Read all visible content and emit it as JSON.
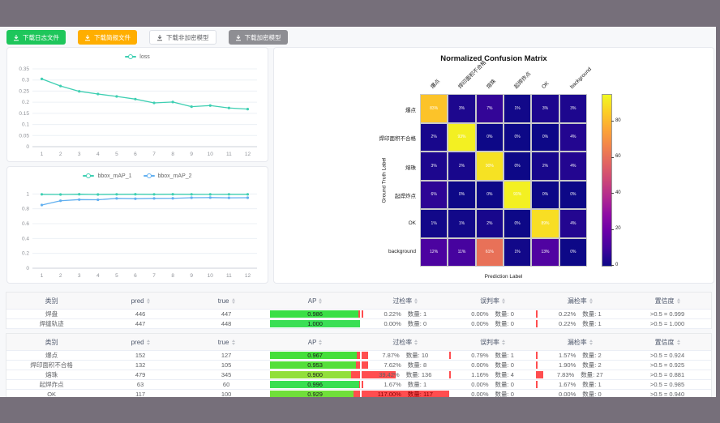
{
  "toolbar": {
    "buttons": [
      {
        "label": "下载日志文件",
        "bg": "#1ec65b",
        "color": "#ffffff",
        "border": ""
      },
      {
        "label": "下载简报文件",
        "bg": "#ffae00",
        "color": "#ffffff",
        "border": ""
      },
      {
        "label": "下载非加密模型",
        "bg": "#ffffff",
        "color": "#606266",
        "border": "#dcdfe6"
      },
      {
        "label": "下载加密模型",
        "bg": "#8e8e93",
        "color": "#ffffff",
        "border": ""
      }
    ]
  },
  "chart_data": [
    {
      "type": "line",
      "title": "",
      "x": [
        1,
        2,
        3,
        4,
        5,
        6,
        7,
        8,
        9,
        10,
        11,
        12
      ],
      "series": [
        {
          "name": "loss",
          "color": "#3ecfb2",
          "values": [
            0.305,
            0.273,
            0.249,
            0.237,
            0.226,
            0.214,
            0.197,
            0.201,
            0.18,
            0.185,
            0.174,
            0.169
          ]
        }
      ],
      "ylim": [
        0,
        0.35
      ],
      "yticks": [
        0,
        0.05,
        0.1,
        0.15,
        0.2,
        0.25,
        0.3,
        0.35
      ],
      "ylabels": [
        "0",
        "0.05",
        "0.1",
        "0.15",
        "0.2",
        "0.25",
        "0.3",
        "0.35"
      ],
      "grid": true,
      "legend_position": "top"
    },
    {
      "type": "line",
      "title": "",
      "x": [
        1,
        2,
        3,
        4,
        5,
        6,
        7,
        8,
        9,
        10,
        11,
        12
      ],
      "series": [
        {
          "name": "bbox_mAP_1",
          "color": "#3ecfb2",
          "values": [
            0.995,
            0.993,
            0.996,
            0.993,
            0.995,
            0.996,
            0.995,
            0.996,
            0.995,
            0.994,
            0.995,
            0.995
          ]
        },
        {
          "name": "bbox_mAP_2",
          "color": "#62b0f0",
          "values": [
            0.851,
            0.908,
            0.924,
            0.922,
            0.94,
            0.936,
            0.94,
            0.941,
            0.949,
            0.951,
            0.948,
            0.949
          ]
        }
      ],
      "ylim": [
        0,
        1.08
      ],
      "yticks": [
        0,
        0.2,
        0.4,
        0.6,
        0.8,
        1
      ],
      "ylabels": [
        "0",
        "0.2",
        "0.4",
        "0.6",
        "0.8",
        "1"
      ],
      "grid": true,
      "legend_position": "top"
    },
    {
      "type": "heatmap",
      "title": "Normalized Confusion Matrix",
      "xlabel": "Prediction Label",
      "ylabel": "Ground Truth Label",
      "labels": [
        "爆点",
        "焊印面积不合格",
        "熔珠",
        "起焊炸点",
        "OK",
        "background"
      ],
      "values_pct": [
        [
          83,
          3,
          7,
          1,
          3,
          3
        ],
        [
          2,
          93,
          0,
          0,
          0,
          4
        ],
        [
          3,
          2,
          90,
          0,
          2,
          4
        ],
        [
          6,
          0,
          0,
          93,
          0,
          0
        ],
        [
          1,
          1,
          2,
          0,
          89,
          4
        ],
        [
          12,
          11,
          61,
          1,
          13,
          0
        ]
      ],
      "colormap": "plasma",
      "vmax": 95,
      "colorbar_ticks": [
        80,
        60,
        40,
        20,
        0
      ]
    }
  ],
  "tables": [
    {
      "headers": [
        {
          "label": "类别",
          "sortable": false
        },
        {
          "label": "pred",
          "sortable": true
        },
        {
          "label": "true",
          "sortable": true
        },
        {
          "label": "AP",
          "sortable": true
        },
        {
          "label": "过检率",
          "sortable": true
        },
        {
          "label": "误判率",
          "sortable": true
        },
        {
          "label": "漏检率",
          "sortable": true
        },
        {
          "label": "置信度",
          "sortable": true
        }
      ],
      "rows": [
        {
          "cls": "焊盘",
          "pred": "446",
          "true": "447",
          "ap_label": "0.986",
          "ap": 0.986,
          "rates": [
            {
              "rate": "0.22%",
              "qty": "数量: 1",
              "pct": 0.22
            },
            {
              "rate": "0.00%",
              "qty": "数量: 0",
              "pct": 0
            },
            {
              "rate": "0.22%",
              "qty": "数量: 1",
              "pct": 0.22
            }
          ],
          "conf": ">0.5 = 0.999"
        },
        {
          "cls": "焊缝轨迹",
          "pred": "447",
          "true": "448",
          "ap_label": "1.000",
          "ap": 1.0,
          "rates": [
            {
              "rate": "0.00%",
              "qty": "数量: 0",
              "pct": 0
            },
            {
              "rate": "0.00%",
              "qty": "数量: 0",
              "pct": 0
            },
            {
              "rate": "0.22%",
              "qty": "数量: 1",
              "pct": 0.22
            }
          ],
          "conf": ">0.5 = 1.000"
        }
      ]
    },
    {
      "headers": [
        {
          "label": "类别",
          "sortable": false
        },
        {
          "label": "pred",
          "sortable": true
        },
        {
          "label": "true",
          "sortable": true
        },
        {
          "label": "AP",
          "sortable": true
        },
        {
          "label": "过检率",
          "sortable": true
        },
        {
          "label": "误判率",
          "sortable": true
        },
        {
          "label": "漏检率",
          "sortable": true
        },
        {
          "label": "置信度",
          "sortable": true
        }
      ],
      "rows": [
        {
          "cls": "爆点",
          "pred": "152",
          "true": "127",
          "ap_label": "0.967",
          "ap": 0.967,
          "rates": [
            {
              "rate": "7.87%",
              "qty": "数量: 10",
              "pct": 7.87
            },
            {
              "rate": "0.79%",
              "qty": "数量: 1",
              "pct": 0.79
            },
            {
              "rate": "1.57%",
              "qty": "数量: 2",
              "pct": 1.57
            }
          ],
          "conf": ">0.5 = 0.924"
        },
        {
          "cls": "焊印面积不合格",
          "pred": "132",
          "true": "105",
          "ap_label": "0.953",
          "ap": 0.953,
          "rates": [
            {
              "rate": "7.62%",
              "qty": "数量: 8",
              "pct": 7.62
            },
            {
              "rate": "0.00%",
              "qty": "数量: 0",
              "pct": 0
            },
            {
              "rate": "1.90%",
              "qty": "数量: 2",
              "pct": 1.9
            }
          ],
          "conf": ">0.5 = 0.925"
        },
        {
          "cls": "熔珠",
          "pred": "479",
          "true": "345",
          "ap_label": "0.900",
          "ap": 0.9,
          "rates": [
            {
              "rate": "39.42%",
              "qty": "数量: 136",
              "pct": 39.42
            },
            {
              "rate": "1.16%",
              "qty": "数量: 4",
              "pct": 1.16
            },
            {
              "rate": "7.83%",
              "qty": "数量: 27",
              "pct": 7.83
            }
          ],
          "conf": ">0.5 = 0.881"
        },
        {
          "cls": "起焊炸点",
          "pred": "63",
          "true": "60",
          "ap_label": "0.996",
          "ap": 0.996,
          "rates": [
            {
              "rate": "1.67%",
              "qty": "数量: 1",
              "pct": 1.67
            },
            {
              "rate": "0.00%",
              "qty": "数量: 0",
              "pct": 0
            },
            {
              "rate": "1.67%",
              "qty": "数量: 1",
              "pct": 1.67
            }
          ],
          "conf": ">0.5 = 0.985"
        },
        {
          "cls": "OK",
          "pred": "117",
          "true": "100",
          "ap_label": "0.929",
          "ap": 0.929,
          "rates": [
            {
              "rate": "117.00%",
              "qty": "数量: 117",
              "pct": 117
            },
            {
              "rate": "0.00%",
              "qty": "数量: 0",
              "pct": 0
            },
            {
              "rate": "0.00%",
              "qty": "数量: 0",
              "pct": 0
            }
          ],
          "conf": ">0.5 = 0.940"
        }
      ]
    }
  ]
}
